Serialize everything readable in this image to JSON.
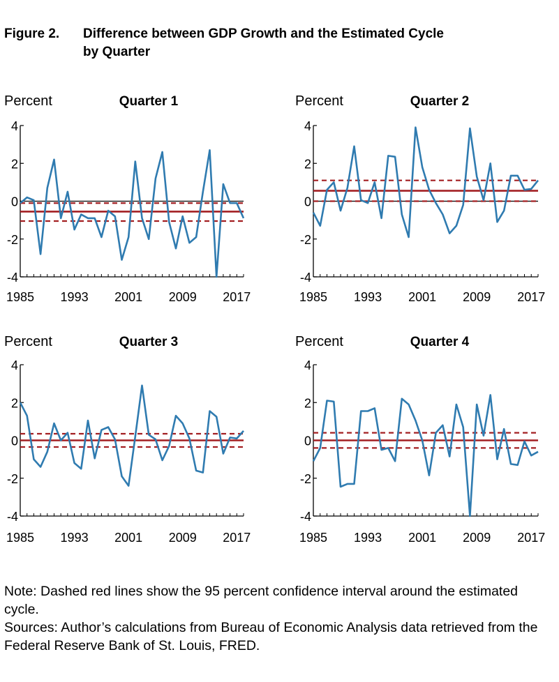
{
  "figure": {
    "label": "Figure 2.",
    "title": "Difference between GDP Growth and the Estimated Cycle by Quarter"
  },
  "notes": {
    "note": "Note: Dashed red lines show the 95 percent confidence interval around the estimated cycle.",
    "sources": "Sources: Author’s calculations from Bureau of Economic Analysis data retrieved from the Federal Reserve Bank of St. Louis, FRED."
  },
  "colors": {
    "series": "#2f7bb0",
    "cycle": "#a31f22",
    "axis": "#000000"
  },
  "chart_data": [
    {
      "type": "line",
      "title": "Quarter 1",
      "ylabel": "Percent",
      "xlim": [
        1985,
        2018
      ],
      "ylim": [
        -4,
        4
      ],
      "xticks": [
        1985,
        1993,
        2001,
        2009,
        2017
      ],
      "yticks": [
        4,
        2,
        0,
        -2,
        -4
      ],
      "x": [
        1985,
        1986,
        1987,
        1988,
        1989,
        1990,
        1991,
        1992,
        1993,
        1994,
        1995,
        1996,
        1997,
        1998,
        1999,
        2000,
        2001,
        2002,
        2003,
        2004,
        2005,
        2006,
        2007,
        2008,
        2009,
        2010,
        2011,
        2012,
        2013,
        2014,
        2015,
        2016,
        2017,
        2018
      ],
      "values": [
        -0.1,
        0.2,
        0.05,
        -2.8,
        0.7,
        2.2,
        -0.9,
        0.5,
        -1.5,
        -0.7,
        -0.9,
        -0.9,
        -1.9,
        -0.5,
        -0.8,
        -3.1,
        -1.9,
        2.1,
        -0.9,
        -2.0,
        1.2,
        2.6,
        -1.1,
        -2.5,
        -0.8,
        -2.2,
        -1.9,
        0.5,
        2.7,
        -4.0,
        0.9,
        -0.1,
        -0.1,
        -0.9
      ],
      "cycle": -0.55,
      "ci": [
        -1.05,
        -0.1
      ]
    },
    {
      "type": "line",
      "title": "Quarter 2",
      "ylabel": "Percent",
      "xlim": [
        1985,
        2018
      ],
      "ylim": [
        -4,
        4
      ],
      "xticks": [
        1985,
        1993,
        2001,
        2009,
        2017
      ],
      "yticks": [
        4,
        2,
        0,
        -2,
        -4
      ],
      "x": [
        1985,
        1986,
        1987,
        1988,
        1989,
        1990,
        1991,
        1992,
        1993,
        1994,
        1995,
        1996,
        1997,
        1998,
        1999,
        2000,
        2001,
        2002,
        2003,
        2004,
        2005,
        2006,
        2007,
        2008,
        2009,
        2010,
        2011,
        2012,
        2013,
        2014,
        2015,
        2016,
        2017,
        2018
      ],
      "values": [
        -0.6,
        -1.3,
        0.6,
        1.0,
        -0.5,
        0.7,
        2.9,
        0.05,
        -0.1,
        1.0,
        -0.9,
        2.4,
        2.35,
        -0.7,
        -1.9,
        3.9,
        1.8,
        0.6,
        -0.1,
        -0.7,
        -1.7,
        -1.3,
        -0.2,
        3.85,
        1.3,
        0.05,
        2.0,
        -1.1,
        -0.5,
        1.35,
        1.35,
        0.6,
        0.65,
        1.1
      ],
      "cycle": 0.55,
      "ci": [
        0.0,
        1.1
      ]
    },
    {
      "type": "line",
      "title": "Quarter 3",
      "ylabel": "Percent",
      "xlim": [
        1985,
        2018
      ],
      "ylim": [
        -4,
        4
      ],
      "xticks": [
        1985,
        1993,
        2001,
        2009,
        2017
      ],
      "yticks": [
        4,
        2,
        0,
        -2,
        -4
      ],
      "x": [
        1985,
        1986,
        1987,
        1988,
        1989,
        1990,
        1991,
        1992,
        1993,
        1994,
        1995,
        1996,
        1997,
        1998,
        1999,
        2000,
        2001,
        2002,
        2003,
        2004,
        2005,
        2006,
        2007,
        2008,
        2009,
        2010,
        2011,
        2012,
        2013,
        2014,
        2015,
        2016,
        2017,
        2018
      ],
      "values": [
        2.0,
        1.3,
        -1.0,
        -1.4,
        -0.6,
        0.9,
        0.0,
        0.4,
        -1.2,
        -1.5,
        1.05,
        -0.95,
        0.55,
        0.7,
        0.05,
        -1.9,
        -2.4,
        0.2,
        2.9,
        0.3,
        0.05,
        -1.05,
        -0.3,
        1.3,
        0.9,
        0.1,
        -1.6,
        -1.7,
        1.55,
        1.25,
        -0.7,
        0.15,
        0.1,
        0.5
      ],
      "cycle": 0.0,
      "ci": [
        -0.35,
        0.35
      ]
    },
    {
      "type": "line",
      "title": "Quarter 4",
      "ylabel": "Percent",
      "xlim": [
        1985,
        2018
      ],
      "ylim": [
        -4,
        4
      ],
      "xticks": [
        1985,
        1993,
        2001,
        2009,
        2017
      ],
      "yticks": [
        4,
        2,
        0,
        -2,
        -4
      ],
      "x": [
        1985,
        1986,
        1987,
        1988,
        1989,
        1990,
        1991,
        1992,
        1993,
        1994,
        1995,
        1996,
        1997,
        1998,
        1999,
        2000,
        2001,
        2002,
        2003,
        2004,
        2005,
        2006,
        2007,
        2008,
        2009,
        2010,
        2011,
        2012,
        2013,
        2014,
        2015,
        2016,
        2017,
        2018
      ],
      "values": [
        -1.1,
        -0.4,
        2.1,
        2.05,
        -2.45,
        -2.3,
        -2.3,
        1.55,
        1.55,
        1.7,
        -0.5,
        -0.4,
        -1.1,
        2.2,
        1.9,
        1.05,
        0.0,
        -1.85,
        0.4,
        0.8,
        -0.85,
        1.9,
        0.7,
        -4.0,
        1.9,
        0.25,
        2.4,
        -1.0,
        0.6,
        -1.25,
        -1.3,
        -0.05,
        -0.8,
        -0.6
      ],
      "cycle": 0.0,
      "ci": [
        -0.4,
        0.4
      ]
    }
  ]
}
